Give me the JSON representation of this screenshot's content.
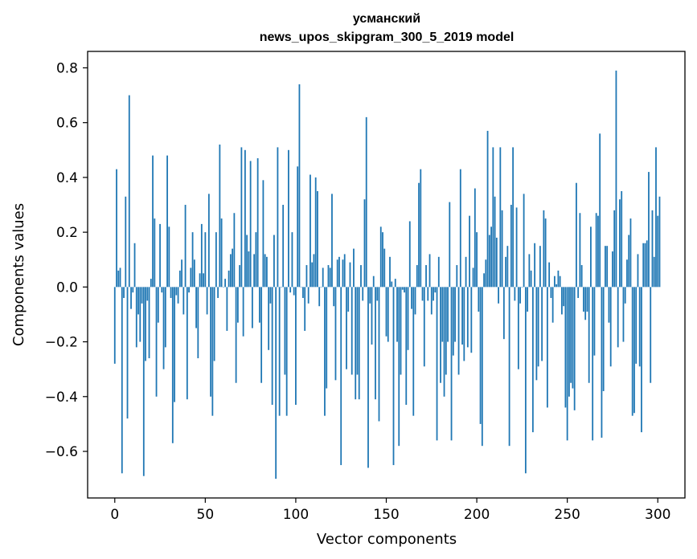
{
  "colors": {
    "bar": "#1f77b4",
    "axis": "#000000",
    "background": "#ffffff"
  },
  "chart_data": {
    "type": "bar",
    "title_line1": "усманский",
    "title_line2": "news_upos_skipgram_300_5_2019 model",
    "xlabel": "Vector components",
    "ylabel": "Components values",
    "xlim": [
      -15,
      315
    ],
    "ylim": [
      -0.77,
      0.86
    ],
    "xticks": [
      0,
      50,
      100,
      150,
      200,
      250,
      300
    ],
    "xtick_labels": [
      "0",
      "50",
      "100",
      "150",
      "200",
      "250",
      "300"
    ],
    "yticks": [
      -0.6,
      -0.4,
      -0.2,
      0.0,
      0.2,
      0.4,
      0.6,
      0.8
    ],
    "ytick_labels": [
      "−0.6",
      "−0.4",
      "−0.2",
      "0.0",
      "0.2",
      "0.4",
      "0.6",
      "0.8"
    ],
    "x": "indices 0..299",
    "values": [
      -0.28,
      0.43,
      0.06,
      0.07,
      -0.68,
      -0.04,
      0.33,
      -0.48,
      0.7,
      -0.08,
      -0.02,
      0.16,
      -0.22,
      -0.1,
      -0.2,
      -0.06,
      -0.69,
      -0.27,
      -0.05,
      -0.26,
      0.03,
      0.48,
      0.25,
      -0.4,
      -0.13,
      0.23,
      -0.02,
      -0.3,
      -0.22,
      0.48,
      0.22,
      -0.04,
      -0.57,
      -0.42,
      -0.03,
      -0.06,
      0.06,
      0.1,
      -0.1,
      0.3,
      -0.41,
      -0.02,
      0.07,
      0.2,
      0.1,
      -0.15,
      -0.26,
      0.05,
      0.23,
      0.05,
      0.2,
      -0.1,
      0.34,
      -0.4,
      -0.47,
      -0.27,
      0.2,
      -0.04,
      0.52,
      0.25,
      0.0,
      0.03,
      -0.16,
      0.06,
      0.12,
      0.14,
      0.27,
      -0.35,
      -0.13,
      0.08,
      0.51,
      -0.18,
      0.5,
      0.19,
      0.13,
      0.46,
      -0.15,
      0.12,
      0.2,
      0.47,
      -0.13,
      -0.35,
      0.39,
      0.12,
      0.11,
      -0.23,
      -0.06,
      -0.43,
      0.19,
      -0.7,
      0.51,
      -0.47,
      0.0,
      0.3,
      -0.32,
      -0.47,
      0.5,
      -0.02,
      0.2,
      -0.03,
      -0.43,
      0.44,
      0.74,
      0.0,
      -0.04,
      -0.16,
      0.08,
      -0.06,
      0.41,
      0.09,
      0.12,
      0.4,
      0.35,
      -0.07,
      0.0,
      0.07,
      -0.47,
      -0.37,
      0.08,
      0.07,
      0.34,
      -0.07,
      -0.34,
      0.1,
      0.11,
      -0.65,
      0.1,
      0.12,
      -0.3,
      -0.09,
      0.09,
      -0.32,
      0.14,
      -0.41,
      -0.32,
      -0.41,
      0.08,
      -0.05,
      0.32,
      0.62,
      -0.66,
      -0.06,
      -0.21,
      0.04,
      -0.41,
      -0.05,
      -0.49,
      0.22,
      0.2,
      0.14,
      -0.18,
      -0.2,
      0.11,
      0.02,
      -0.65,
      0.03,
      -0.2,
      -0.58,
      -0.32,
      -0.01,
      -0.02,
      -0.43,
      -0.23,
      0.24,
      -0.08,
      -0.47,
      -0.1,
      0.08,
      0.38,
      0.43,
      -0.05,
      -0.29,
      0.08,
      -0.05,
      0.12,
      -0.1,
      -0.05,
      -0.02,
      -0.56,
      0.11,
      -0.35,
      -0.2,
      -0.4,
      -0.32,
      -0.2,
      0.31,
      -0.56,
      -0.25,
      -0.2,
      0.08,
      -0.32,
      0.43,
      -0.21,
      -0.27,
      0.11,
      -0.22,
      0.26,
      -0.24,
      0.07,
      0.36,
      0.2,
      -0.09,
      -0.5,
      -0.58,
      0.05,
      0.1,
      0.57,
      0.19,
      0.22,
      0.51,
      0.33,
      0.18,
      -0.06,
      0.51,
      0.28,
      -0.19,
      0.11,
      0.15,
      -0.58,
      0.3,
      0.51,
      -0.05,
      0.29,
      -0.3,
      -0.06,
      0.0,
      0.34,
      -0.68,
      -0.09,
      0.12,
      0.06,
      -0.53,
      0.16,
      -0.34,
      -0.29,
      0.15,
      -0.27,
      0.28,
      0.25,
      -0.44,
      0.09,
      -0.04,
      -0.13,
      0.04,
      0.01,
      0.06,
      0.04,
      -0.1,
      -0.07,
      -0.44,
      -0.56,
      -0.4,
      -0.35,
      -0.37,
      -0.45,
      0.38,
      -0.04,
      0.27,
      0.08,
      -0.09,
      -0.12,
      -0.09,
      -0.35,
      0.22,
      -0.56,
      -0.25,
      0.27,
      0.26,
      0.56,
      -0.55,
      -0.38,
      0.15,
      0.15,
      -0.13,
      -0.29,
      0.13,
      0.28,
      0.79,
      -0.22,
      0.32,
      0.35,
      -0.2,
      -0.06,
      0.1,
      0.19,
      0.25,
      -0.47,
      -0.46,
      -0.28,
      0.12,
      -0.29,
      -0.53,
      0.16,
      0.16,
      0.17,
      0.42,
      -0.35,
      0.28,
      0.11,
      0.51,
      0.26,
      0.33
    ]
  }
}
